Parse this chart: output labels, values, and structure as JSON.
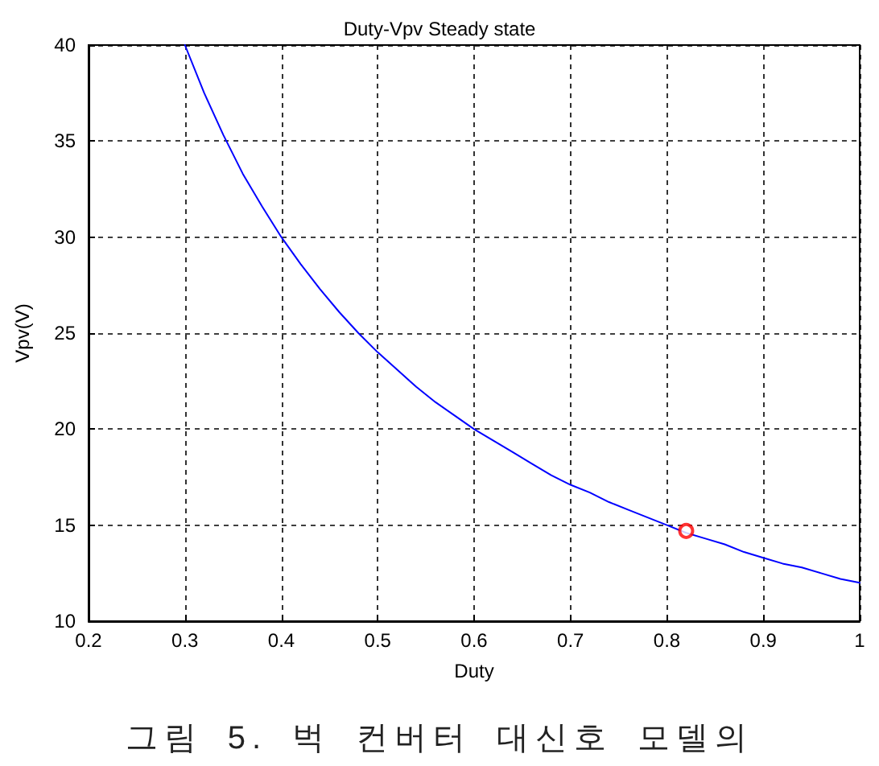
{
  "chart_data": {
    "type": "line",
    "title": "Duty-Vpv Steady state",
    "xlabel": "Duty",
    "ylabel": "Vpv(V)",
    "annotations": [
      "그림 5. 벅 컨버터 대신호 모델의"
    ],
    "xlim": [
      0.2,
      1
    ],
    "xticks": [
      0.2,
      0.3,
      0.4,
      0.5,
      0.6,
      0.7,
      0.8,
      0.9,
      1
    ],
    "ylim": [
      10,
      40
    ],
    "yticks": [
      10,
      15,
      20,
      25,
      30,
      35,
      40
    ],
    "grid": true,
    "line_style": "solid",
    "series": [
      {
        "color": "#0000ff",
        "marker": "none",
        "x": [
          0.3,
          0.32,
          0.34,
          0.36,
          0.38,
          0.4,
          0.42,
          0.44,
          0.46,
          0.48,
          0.5,
          0.52,
          0.54,
          0.56,
          0.58,
          0.6,
          0.62,
          0.64,
          0.66,
          0.68,
          0.7,
          0.72,
          0.74,
          0.76,
          0.78,
          0.8,
          0.82,
          0.84,
          0.86,
          0.88,
          0.9,
          0.92,
          0.94,
          0.96,
          0.98,
          1
        ],
        "values": [
          40.0,
          37.5,
          35.3,
          33.3,
          31.6,
          30.0,
          28.6,
          27.3,
          26.1,
          25.0,
          24.0,
          23.1,
          22.2,
          21.4,
          20.7,
          20.0,
          19.4,
          18.8,
          18.2,
          17.6,
          17.1,
          16.7,
          16.2,
          15.8,
          15.4,
          15.0,
          14.6,
          14.3,
          14.0,
          13.6,
          13.3,
          13.0,
          12.8,
          12.5,
          12.2,
          12.0
        ]
      },
      {
        "type": "scatter",
        "color": "#ff0000",
        "marker": "circle",
        "x": [
          0.82
        ],
        "values": [
          14.7
        ]
      }
    ]
  }
}
